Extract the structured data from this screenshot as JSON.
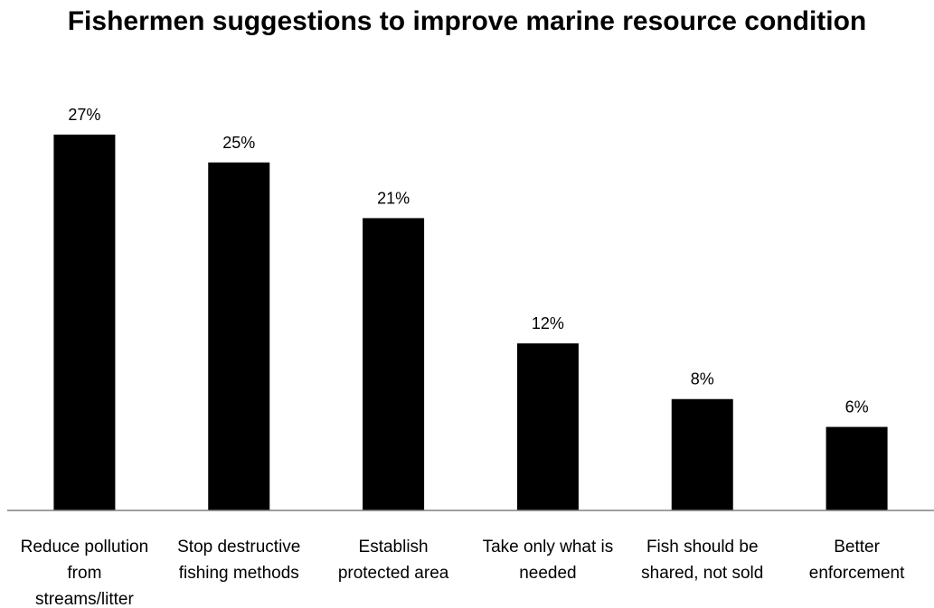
{
  "chart_data": {
    "type": "bar",
    "title": "Fishermen suggestions to improve marine resource condition",
    "categories": [
      [
        "Reduce pollution",
        "from",
        "streams/litter"
      ],
      [
        "Stop destructive",
        "fishing methods"
      ],
      [
        "Establish",
        "protected area"
      ],
      [
        "Take only what is",
        "needed"
      ],
      [
        "Fish should be",
        "shared, not sold"
      ],
      [
        "Better",
        "enforcement"
      ]
    ],
    "values": [
      27,
      25,
      21,
      12,
      8,
      6
    ],
    "data_labels": [
      "27%",
      "25%",
      "21%",
      "12%",
      "8%",
      "6%"
    ],
    "ylim": [
      0,
      30
    ],
    "bar_color": "#000000",
    "grid": false,
    "legend": "none"
  }
}
